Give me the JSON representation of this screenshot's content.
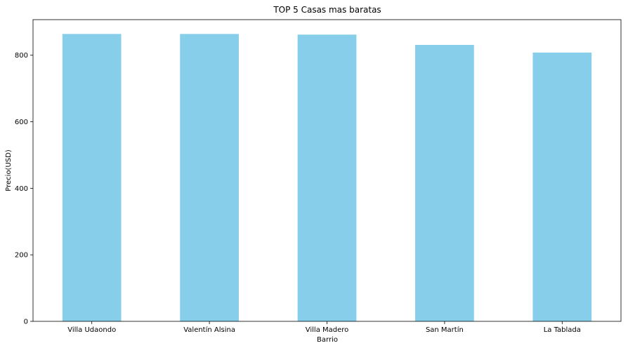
{
  "chart_data": {
    "type": "bar",
    "title": "TOP 5 Casas mas baratas",
    "xlabel": "Barrio",
    "ylabel": "Precio(USD)",
    "categories": [
      "Villa Udaondo",
      "Valentín Alsina",
      "Villa Madero",
      "San Martín",
      "La Tablada"
    ],
    "values": [
      864,
      864,
      862,
      831,
      808
    ],
    "yticks": [
      0,
      200,
      400,
      600,
      800
    ],
    "ylim": [
      0,
      907
    ],
    "bar_color": "#87ceeb",
    "grid": false,
    "legend": false
  }
}
